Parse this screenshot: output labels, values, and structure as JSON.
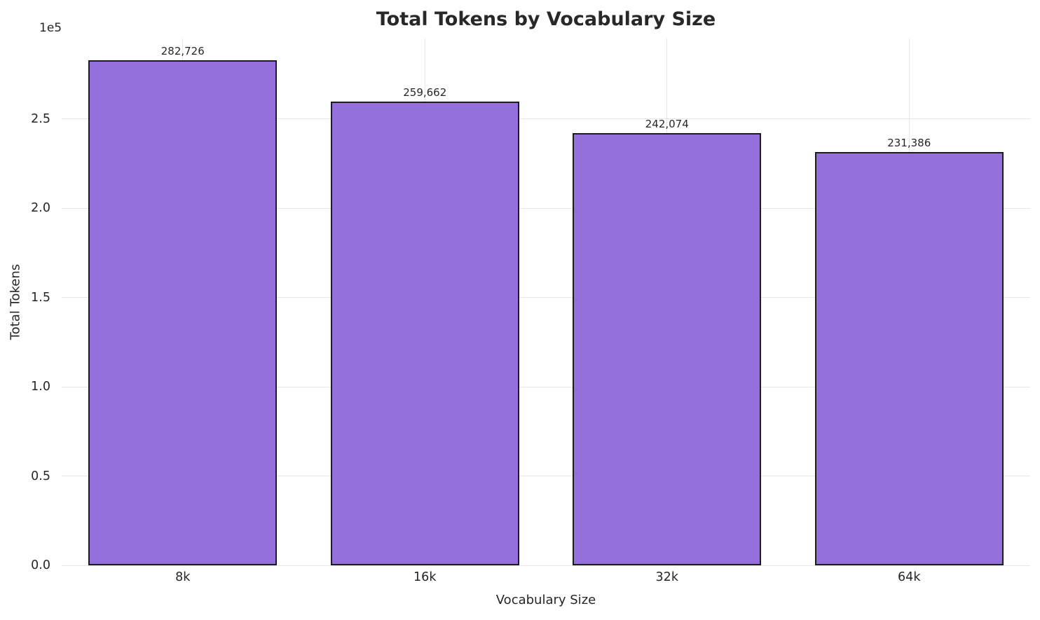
{
  "chart_data": {
    "type": "bar",
    "title": "Total Tokens by Vocabulary Size",
    "xlabel": "Vocabulary Size",
    "ylabel": "Total Tokens",
    "y_offset_label": "1e5",
    "categories": [
      "8k",
      "16k",
      "32k",
      "64k"
    ],
    "values": [
      282726,
      259662,
      242074,
      231386
    ],
    "value_labels": [
      "282,726",
      "259,662",
      "242,074",
      "231,386"
    ],
    "ylim": [
      0,
      295000
    ],
    "yticks": [
      0,
      50000,
      100000,
      150000,
      200000,
      250000
    ],
    "ytick_labels": [
      "0.0",
      "0.5",
      "1.0",
      "1.5",
      "2.0",
      "2.5"
    ],
    "grid": true,
    "legend": "none",
    "bar_color": "#9370db",
    "bar_edge_color": "#1c1c1c",
    "grid_color": "#e7e7e7",
    "background_color": "#ffffff"
  }
}
